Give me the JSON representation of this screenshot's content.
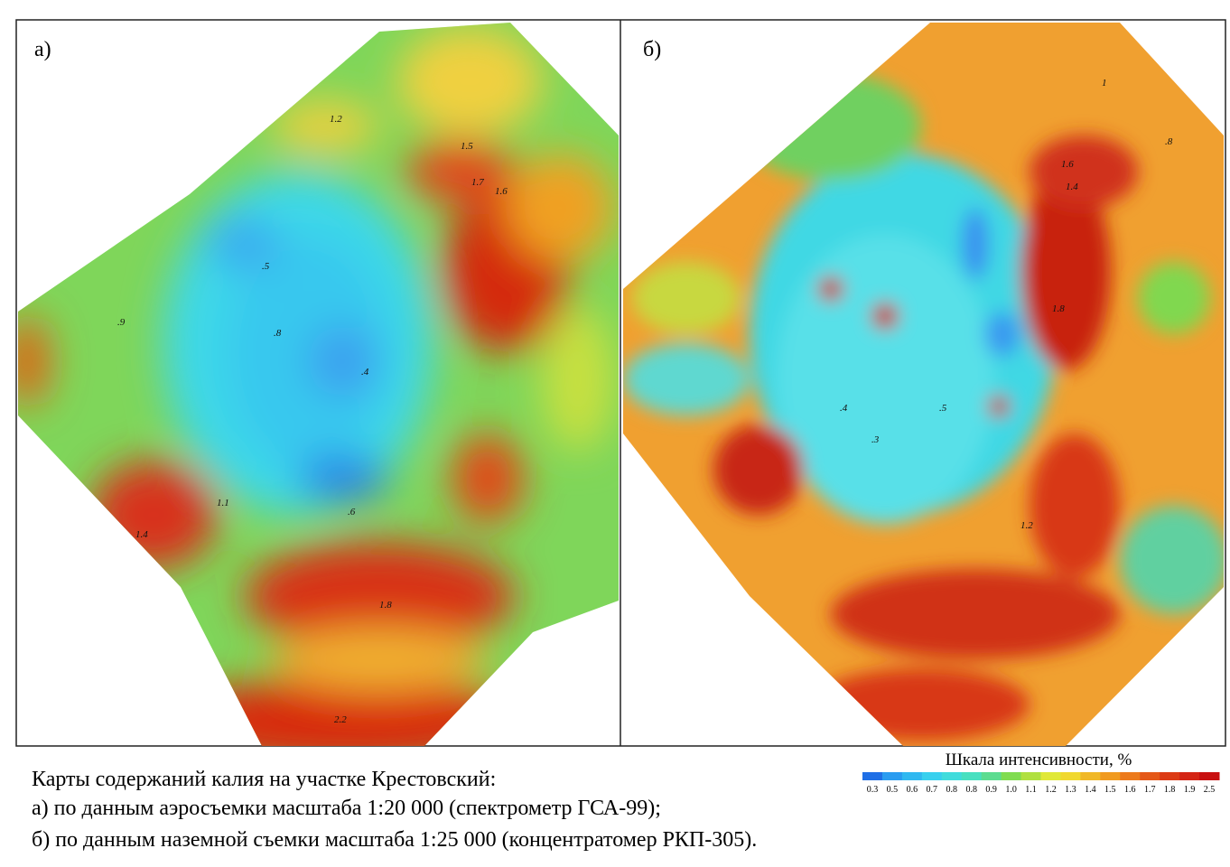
{
  "panels": [
    {
      "label": "а)",
      "contour_labels": [
        "1.2",
        "1.5",
        "1.7",
        "1.6",
        ".5",
        ".4",
        ".6",
        ".8",
        ".9",
        "1.1",
        "1.4",
        "1.8",
        "2.2"
      ]
    },
    {
      "label": "б)",
      "contour_labels": [
        "1.6",
        "1.4",
        "1.8",
        ".4",
        ".3",
        ".5",
        "1.2",
        ".8",
        "1"
      ]
    }
  ],
  "legend": {
    "title": "Шкала интенсивности, %",
    "ticks": [
      "0.3",
      "0.5",
      "0.6",
      "0.7",
      "0.8",
      "0.8",
      "0.9",
      "1.0",
      "1.1",
      "1.2",
      "1.3",
      "1.4",
      "1.5",
      "1.6",
      "1.7",
      "1.8",
      "1.9",
      "2.5"
    ]
  },
  "caption": {
    "lines": [
      "Карты содержаний калия на участке Крестовский:",
      "а) по данным аэросъемки масштаба 1:20 000 (спектрометр ГСА-99);",
      "б) по данным наземной съемки масштаба 1:25 000 (концентратомер РКП-305)."
    ]
  }
}
